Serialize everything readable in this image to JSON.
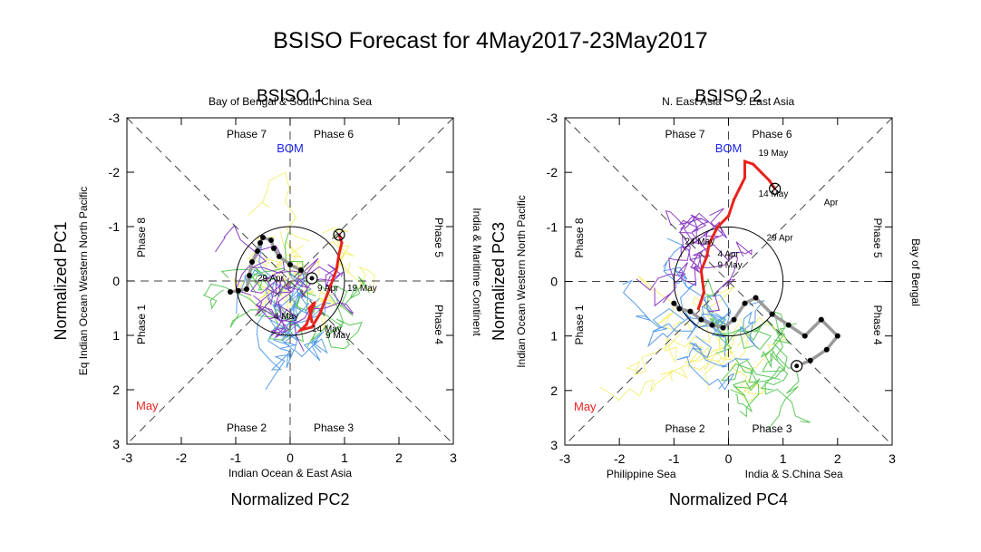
{
  "figure_title": "BSISO Forecast for 4May2017-23May2017",
  "colors": {
    "forecast_april": "#9a9a9a",
    "forecast_may": "#e8231c",
    "ensemble_purple": "#8a3bc4",
    "ensemble_blue": "#5a9ee8",
    "ensemble_green": "#5cc85a",
    "ensemble_yellow": "#f4f07a",
    "bom_label": "#1a22ee",
    "may_label": "#e8231c"
  },
  "chart_data": [
    {
      "type": "line",
      "name": "BSISO 1",
      "title": "BSISO 1",
      "xlabel": "Normalized PC2",
      "ylabel": "Normalized PC1",
      "xlim": [
        -3,
        3
      ],
      "ylim": [
        3,
        -3
      ],
      "x_ticks": [
        "-3",
        "-2",
        "-1",
        "0",
        "1",
        "2",
        "3"
      ],
      "y_ticks": [
        "-3",
        "-2",
        "-1",
        "0",
        "1",
        "2",
        "3"
      ],
      "region_top": [
        "Bay of Bengal & South China Sea"
      ],
      "region_bottom": [
        "Indian Ocean & East Asia"
      ],
      "region_left": "Eq Indian Ocean   Western North Pacific",
      "region_right": "India & Maritime Continent",
      "phases": {
        "p1": "Phase 1",
        "p2": "Phase 2",
        "p3": "Phase 3",
        "p4": "Phase 4",
        "p5": "Phase 5",
        "p6": "Phase 6",
        "p7": "Phase 7",
        "p8": "Phase 8"
      },
      "center_label": "BOM",
      "month_label": "May",
      "observed_april": {
        "x": [
          -1.1,
          -0.95,
          -0.8,
          -0.75,
          -0.7,
          -0.6,
          -0.55,
          -0.5,
          -0.35,
          -0.3,
          -0.2,
          0.0,
          0.2,
          0.4
        ],
        "y": [
          0.2,
          0.18,
          0.15,
          -0.1,
          -0.35,
          -0.55,
          -0.7,
          -0.8,
          -0.75,
          -0.6,
          -0.45,
          -0.3,
          -0.2,
          -0.05
        ]
      },
      "forecast_may": {
        "x": [
          0.4,
          0.35,
          0.45,
          0.3,
          0.2,
          0.4,
          0.55,
          0.7,
          0.85,
          0.9,
          0.95,
          0.9
        ],
        "y": [
          0.75,
          0.5,
          0.4,
          0.8,
          0.9,
          0.85,
          0.6,
          0.2,
          -0.2,
          -0.5,
          -0.7,
          -0.85
        ]
      },
      "annotations": [
        {
          "text": "29  Apr",
          "x": -0.6,
          "y": 0.0
        },
        {
          "text": "9  Apr",
          "x": 0.5,
          "y": 0.18
        },
        {
          "text": "19 May",
          "x": 1.05,
          "y": 0.18
        },
        {
          "text": "4  May",
          "x": -0.3,
          "y": 0.7
        },
        {
          "text": "14 May",
          "x": 0.4,
          "y": 0.93
        },
        {
          "text": "9  May",
          "x": 0.65,
          "y": 1.05
        }
      ]
    },
    {
      "type": "line",
      "name": "BSISO 2",
      "title": "BSISO 2",
      "xlabel": "Normalized PC4",
      "ylabel": "Normalized PC3",
      "xlim": [
        -3,
        3
      ],
      "ylim": [
        3,
        -3
      ],
      "x_ticks": [
        "-3",
        "-2",
        "-1",
        "0",
        "1",
        "2",
        "3"
      ],
      "y_ticks": [
        "-3",
        "-2",
        "-1",
        "0",
        "1",
        "2",
        "3"
      ],
      "region_top": [
        "N. East Asia",
        "S. East Asia"
      ],
      "region_bottom": [
        "Philippine Sea",
        "India & S.China Sea"
      ],
      "region_left": "Indian Ocean   Western North Pacific",
      "region_right": "Bay of Bengal",
      "phases": {
        "p1": "Phase 1",
        "p2": "Phase 2",
        "p3": "Phase 3",
        "p4": "Phase 4",
        "p5": "Phase 5",
        "p6": "Phase 6",
        "p7": "Phase 7",
        "p8": "Phase 8"
      },
      "center_label": "BOM",
      "month_label": "May",
      "observed_april": {
        "x": [
          -1.0,
          -0.9,
          -0.7,
          -0.5,
          -0.3,
          -0.1,
          0.1,
          0.3,
          0.5,
          0.8,
          1.1,
          1.4,
          1.7,
          2.0,
          1.8,
          1.5,
          1.25
        ],
        "y": [
          0.4,
          0.5,
          0.55,
          0.7,
          0.8,
          0.85,
          0.7,
          0.4,
          0.3,
          0.6,
          0.8,
          1.0,
          0.7,
          1.0,
          1.25,
          1.45,
          1.55
        ]
      },
      "forecast_may": {
        "x": [
          -0.55,
          -0.45,
          -0.5,
          -0.4,
          -0.35,
          -0.2,
          0.0,
          0.1,
          0.2,
          0.3,
          0.3,
          0.45,
          0.6,
          0.75,
          0.85
        ],
        "y": [
          0.5,
          0.2,
          -0.2,
          -0.45,
          -0.7,
          -1.0,
          -1.2,
          -1.5,
          -1.7,
          -1.9,
          -2.2,
          -2.15,
          -2.0,
          -1.85,
          -1.7
        ]
      },
      "annotations": [
        {
          "text": "Apr",
          "x": 1.75,
          "y": -1.4
        },
        {
          "text": "24  May",
          "x": -0.8,
          "y": -0.68
        },
        {
          "text": "29 Apr",
          "x": 0.7,
          "y": -0.75
        },
        {
          "text": "4  Apr",
          "x": -0.2,
          "y": -0.45
        },
        {
          "text": "9  May",
          "x": -0.2,
          "y": -0.25
        },
        {
          "text": "14  May",
          "x": 0.55,
          "y": -1.55
        },
        {
          "text": "19  May",
          "x": 0.55,
          "y": -2.3
        }
      ]
    }
  ]
}
